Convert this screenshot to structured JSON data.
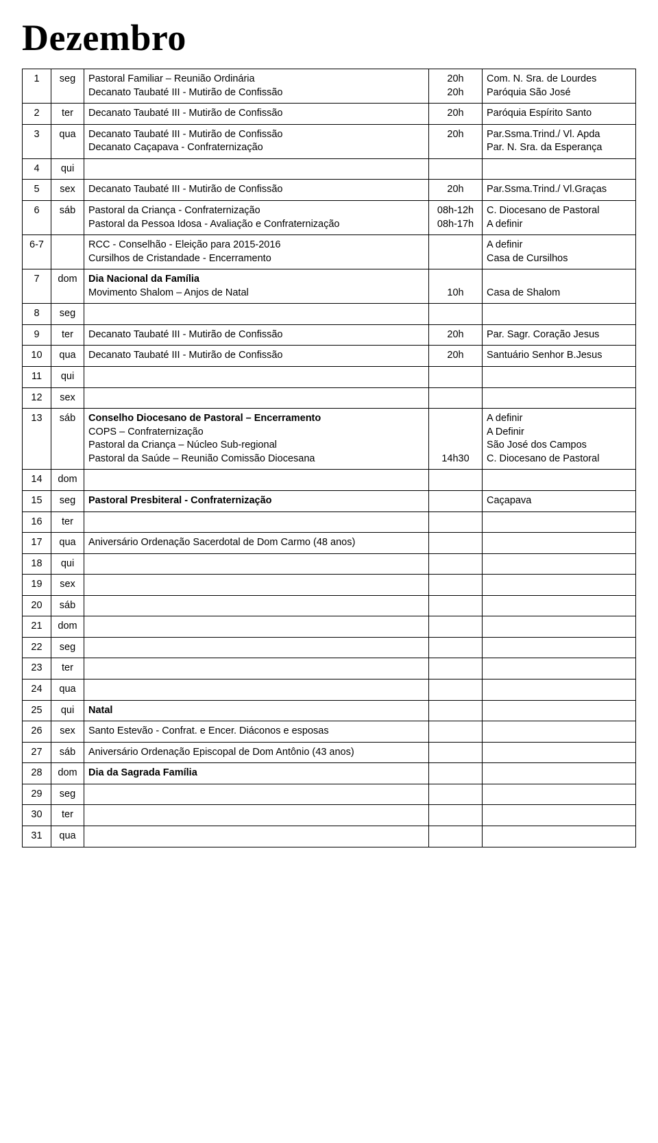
{
  "title": "Dezembro",
  "rows": [
    {
      "day": "1",
      "dow": "seg",
      "desc": [
        {
          "t": "Pastoral Familiar – Reunião Ordinária"
        },
        {
          "t": "Decanato Taubaté III - Mutirão de Confissão"
        }
      ],
      "time": [
        "20h",
        "20h"
      ],
      "loc": [
        "Com. N. Sra. de Lourdes",
        "Paróquia São José"
      ]
    },
    {
      "day": "2",
      "dow": "ter",
      "desc": [
        {
          "t": "Decanato Taubaté III - Mutirão de Confissão"
        }
      ],
      "time": [
        "20h"
      ],
      "loc": [
        "Paróquia Espírito Santo"
      ]
    },
    {
      "day": "3",
      "dow": "qua",
      "desc": [
        {
          "t": "Decanato Taubaté III - Mutirão de Confissão"
        },
        {
          "t": "Decanato Caçapava - Confraternização"
        }
      ],
      "time": [
        "20h",
        ""
      ],
      "loc": [
        "Par.Ssma.Trind./ Vl. Apda",
        "Par. N. Sra. da Esperança"
      ]
    },
    {
      "day": "4",
      "dow": "qui",
      "desc": [],
      "time": [],
      "loc": []
    },
    {
      "day": "5",
      "dow": "sex",
      "desc": [
        {
          "t": "Decanato Taubaté III - Mutirão de Confissão"
        }
      ],
      "time": [
        "20h"
      ],
      "loc": [
        "Par.Ssma.Trind./ Vl.Graças"
      ]
    },
    {
      "day": "6",
      "dow": "sáb",
      "desc": [
        {
          "t": "Pastoral da Criança - Confraternização"
        },
        {
          "t": "Pastoral da Pessoa Idosa - Avaliação e Confraternização"
        }
      ],
      "time": [
        "08h-12h",
        "08h-17h"
      ],
      "loc": [
        "C. Diocesano de Pastoral",
        "A definir"
      ]
    },
    {
      "day": "6-7",
      "dow": "",
      "desc": [
        {
          "t": "RCC - Conselhão - Eleição para 2015-2016"
        },
        {
          "t": "Cursilhos de Cristandade - Encerramento"
        }
      ],
      "time": [
        "",
        ""
      ],
      "loc": [
        "A definir",
        "Casa de Cursilhos"
      ]
    },
    {
      "day": "7",
      "dow": "dom",
      "desc": [
        {
          "t": "Dia Nacional da Família",
          "b": true
        },
        {
          "t": "Movimento Shalom – Anjos de Natal"
        }
      ],
      "time": [
        "",
        "10h"
      ],
      "loc": [
        "",
        "Casa de Shalom"
      ]
    },
    {
      "day": "8",
      "dow": "seg",
      "desc": [],
      "time": [],
      "loc": []
    },
    {
      "day": "9",
      "dow": "ter",
      "desc": [
        {
          "t": "Decanato Taubaté III - Mutirão de Confissão"
        }
      ],
      "time": [
        "20h"
      ],
      "loc": [
        "Par. Sagr. Coração Jesus"
      ]
    },
    {
      "day": "10",
      "dow": "qua",
      "desc": [
        {
          "t": "Decanato Taubaté III - Mutirão de Confissão"
        }
      ],
      "time": [
        "20h"
      ],
      "loc": [
        "Santuário Senhor B.Jesus"
      ]
    },
    {
      "day": "11",
      "dow": "qui",
      "desc": [],
      "time": [],
      "loc": []
    },
    {
      "day": "12",
      "dow": "sex",
      "desc": [],
      "time": [],
      "loc": []
    },
    {
      "day": "13",
      "dow": "sáb",
      "desc": [
        {
          "t": "Conselho Diocesano de Pastoral – Encerramento",
          "b": true
        },
        {
          "t": "COPS – Confraternização"
        },
        {
          "t": "Pastoral da Criança – Núcleo Sub-regional"
        },
        {
          "t": "Pastoral da Saúde – Reunião Comissão Diocesana"
        }
      ],
      "time": [
        "",
        "",
        "",
        "14h30"
      ],
      "loc": [
        "A definir",
        "A Definir",
        "São José dos Campos",
        "C. Diocesano de Pastoral"
      ]
    },
    {
      "day": "14",
      "dow": "dom",
      "desc": [],
      "time": [],
      "loc": []
    },
    {
      "day": "15",
      "dow": "seg",
      "desc": [
        {
          "t": "Pastoral Presbiteral - Confraternização",
          "b": true
        }
      ],
      "time": [
        ""
      ],
      "loc": [
        "Caçapava"
      ]
    },
    {
      "day": "16",
      "dow": "ter",
      "desc": [],
      "time": [],
      "loc": []
    },
    {
      "day": "17",
      "dow": "qua",
      "desc": [
        {
          "t": "Aniversário Ordenação Sacerdotal de Dom Carmo (48 anos)"
        }
      ],
      "time": [
        ""
      ],
      "loc": [
        ""
      ]
    },
    {
      "day": "18",
      "dow": "qui",
      "desc": [],
      "time": [],
      "loc": []
    },
    {
      "day": "19",
      "dow": "sex",
      "desc": [],
      "time": [],
      "loc": []
    },
    {
      "day": "20",
      "dow": "sáb",
      "desc": [],
      "time": [],
      "loc": []
    },
    {
      "day": "21",
      "dow": "dom",
      "desc": [],
      "time": [],
      "loc": []
    },
    {
      "day": "22",
      "dow": "seg",
      "desc": [],
      "time": [],
      "loc": []
    },
    {
      "day": "23",
      "dow": "ter",
      "desc": [],
      "time": [],
      "loc": []
    },
    {
      "day": "24",
      "dow": "qua",
      "desc": [],
      "time": [],
      "loc": []
    },
    {
      "day": "25",
      "dow": "qui",
      "desc": [
        {
          "t": "Natal",
          "b": true
        }
      ],
      "time": [
        ""
      ],
      "loc": [
        ""
      ]
    },
    {
      "day": "26",
      "dow": "sex",
      "desc": [
        {
          "t": "Santo Estevão - Confrat. e Encer. Diáconos e esposas"
        }
      ],
      "time": [
        ""
      ],
      "loc": [
        ""
      ]
    },
    {
      "day": "27",
      "dow": "sáb",
      "desc": [
        {
          "t": "Aniversário Ordenação Episcopal de Dom Antônio (43 anos)"
        }
      ],
      "time": [
        ""
      ],
      "loc": [
        ""
      ]
    },
    {
      "day": "28",
      "dow": "dom",
      "desc": [
        {
          "t": "Dia da Sagrada Família",
          "b": true
        }
      ],
      "time": [
        ""
      ],
      "loc": [
        ""
      ]
    },
    {
      "day": "29",
      "dow": "seg",
      "desc": [],
      "time": [],
      "loc": []
    },
    {
      "day": "30",
      "dow": "ter",
      "desc": [],
      "time": [],
      "loc": []
    },
    {
      "day": "31",
      "dow": "qua",
      "desc": [],
      "time": [],
      "loc": []
    }
  ]
}
